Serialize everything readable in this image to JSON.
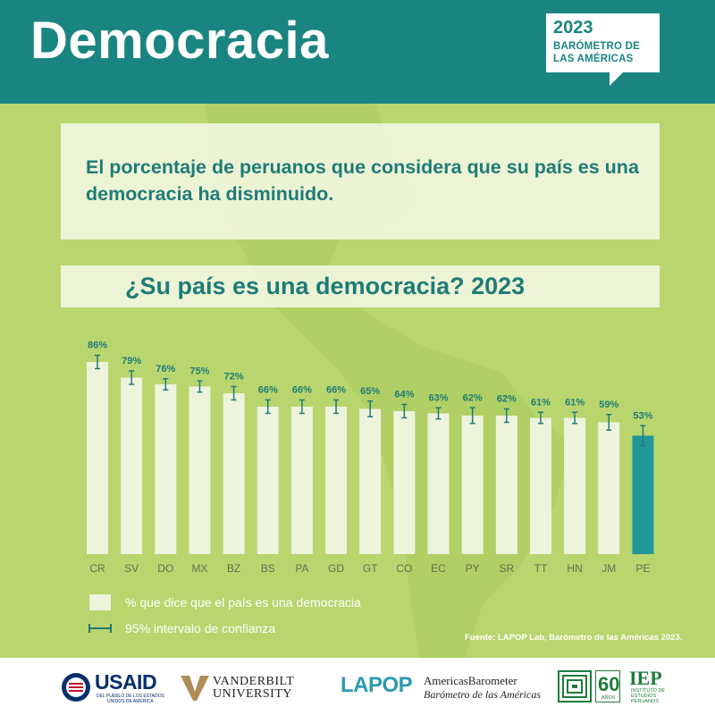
{
  "header": {
    "title": "Democracia",
    "badge_year": "2023",
    "badge_line1": "BARÓMETRO DE",
    "badge_line2": "LAS AMÉRICAS"
  },
  "statement": "El porcentaje de peruanos que considera que su país es una democracia ha disminuido.",
  "chart_data": {
    "type": "bar",
    "title": "¿Su país es una democracia? 2023",
    "categories": [
      "CR",
      "SV",
      "DO",
      "MX",
      "BZ",
      "BS",
      "PA",
      "GD",
      "GT",
      "CO",
      "EC",
      "PY",
      "SR",
      "TT",
      "HN",
      "JM",
      "PE"
    ],
    "values": [
      86,
      79,
      76,
      75,
      72,
      66,
      66,
      66,
      65,
      64,
      63,
      62,
      62,
      61,
      61,
      59,
      53
    ],
    "value_labels": [
      "86%",
      "79%",
      "76%",
      "75%",
      "72%",
      "66%",
      "66%",
      "66%",
      "65%",
      "64%",
      "63%",
      "62%",
      "62%",
      "61%",
      "61%",
      "59%",
      "53%"
    ],
    "ci_half_width": [
      3,
      3,
      2.5,
      2.5,
      3,
      3,
      3,
      3,
      3.5,
      3,
      2.5,
      3.5,
      3,
      2.5,
      2.5,
      3.5,
      4.5
    ],
    "highlight": "PE",
    "colors": {
      "bar": "#eef3dc",
      "highlight": "#22979a",
      "error": "#1e7c78",
      "label": "#1e7c78"
    },
    "ylim": [
      0,
      100
    ],
    "grid": false,
    "legend": [
      {
        "label": "% que dice que el país es una democracia",
        "kind": "bar"
      },
      {
        "label": "95% intervalo de confianza",
        "kind": "error"
      }
    ]
  },
  "source": "Fuente: LAPOP Lab, Barómetro de las Américas 2023.",
  "footer": {
    "usaid": "USAID",
    "usaid_sub1": "DEL PUEBLO DE LOS ESTADOS",
    "usaid_sub2": "UNIDOS DE AMÉRICA",
    "vanderbilt1": "VANDERBILT",
    "vanderbilt2": "UNIVERSITY",
    "lapop": "LAPOP",
    "ab1": "AmericasBarometer",
    "ab2": "Barómetro de las Américas",
    "iep60": "60",
    "iep60_sub": "AÑOS",
    "iep": "IEP",
    "iep_sub1": "INSTITUTO DE",
    "iep_sub2": "ESTUDIOS",
    "iep_sub3": "PERUANOS"
  }
}
